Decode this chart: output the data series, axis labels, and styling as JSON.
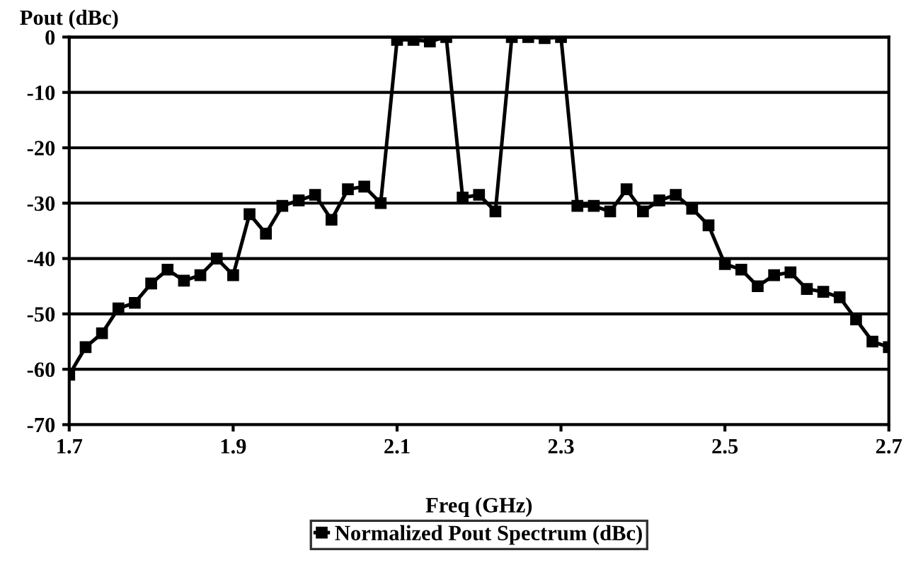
{
  "chart_data": {
    "type": "line",
    "xlabel": "Freq (GHz)",
    "ylabel": "Pout (dBc)",
    "x": [
      1.7,
      1.72,
      1.74,
      1.76,
      1.78,
      1.8,
      1.82,
      1.84,
      1.86,
      1.88,
      1.9,
      1.92,
      1.94,
      1.96,
      1.98,
      2.0,
      2.02,
      2.04,
      2.06,
      2.08,
      2.1,
      2.12,
      2.14,
      2.16,
      2.18,
      2.2,
      2.22,
      2.24,
      2.26,
      2.28,
      2.3,
      2.32,
      2.34,
      2.36,
      2.38,
      2.4,
      2.42,
      2.44,
      2.46,
      2.48,
      2.5,
      2.52,
      2.54,
      2.56,
      2.58,
      2.6,
      2.62,
      2.64,
      2.66,
      2.68,
      2.7
    ],
    "series": [
      {
        "name": "Normalized Pout Spectrum (dBc)",
        "color": "#000000",
        "values": [
          -61,
          -56,
          -53.5,
          -49,
          -48,
          -44.5,
          -42,
          -44,
          -43,
          -40,
          -43,
          -32,
          -35.5,
          -30.5,
          -29.5,
          -28.5,
          -33,
          -27.5,
          -27,
          -30,
          -0.5,
          -0.5,
          -0.8,
          0,
          -29,
          -28.5,
          -31.5,
          0,
          0,
          -0.2,
          0,
          -30.5,
          -30.5,
          -31.5,
          -27.5,
          -31.5,
          -29.5,
          -28.5,
          -31,
          -34,
          -41,
          -42,
          -45,
          -43,
          -42.5,
          -45.5,
          -46,
          -47,
          -51,
          -55,
          -56
        ]
      }
    ],
    "xlim": [
      1.7,
      2.7
    ],
    "xticks": [
      1.7,
      1.9,
      2.1,
      2.3,
      2.5,
      2.7
    ],
    "ylim": [
      -70,
      0
    ],
    "yticks": [
      -70,
      -60,
      -50,
      -40,
      -30,
      -20,
      -10,
      0
    ],
    "grid": "y",
    "legend": "bottom",
    "marker": "square",
    "line_style": "solid"
  }
}
